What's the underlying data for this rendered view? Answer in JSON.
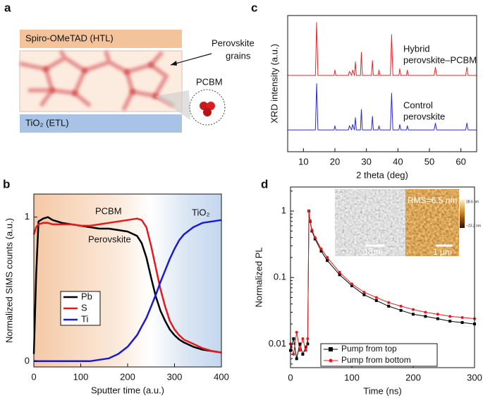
{
  "panels": [
    "a",
    "b",
    "c",
    "d"
  ],
  "diagram": {
    "htl": "Spiro-OMeTAD (HTL)",
    "etl": "TiO₂ (ETL)",
    "grains": [
      "Perovskite",
      "grains"
    ],
    "pcbm": "PCBM"
  },
  "chart_data": [
    {
      "type": "line",
      "xlabel": "2 theta (deg)",
      "ylabel": "XRD intensity (a.u.)",
      "x": [
        5,
        13.8,
        14.2,
        14.6,
        19.7,
        20.0,
        20.3,
        24.3,
        24.6,
        25.3,
        25.6,
        26.2,
        26.5,
        26.8,
        28.1,
        28.4,
        28.7,
        31.6,
        31.9,
        32.2,
        33.7,
        34.0,
        34.3,
        37.6,
        38.0,
        38.4,
        40.3,
        40.6,
        40.9,
        42.7,
        43.0,
        43.3,
        51.5,
        51.9,
        52.3,
        61.5,
        61.9,
        62.3,
        65
      ],
      "series": [
        {
          "color": "#e8262a",
          "values": [
            0.56,
            0.56,
            0.95,
            0.56,
            0.56,
            0.6,
            0.56,
            0.56,
            0.59,
            0.56,
            0.6,
            0.56,
            0.66,
            0.56,
            0.56,
            0.73,
            0.56,
            0.56,
            0.67,
            0.56,
            0.56,
            0.6,
            0.56,
            0.56,
            0.86,
            0.56,
            0.56,
            0.61,
            0.56,
            0.56,
            0.6,
            0.56,
            0.56,
            0.62,
            0.56,
            0.56,
            0.62,
            0.56,
            0.56
          ]
        },
        {
          "color": "#2b2bd0",
          "values": [
            0.16,
            0.16,
            0.5,
            0.16,
            0.16,
            0.19,
            0.16,
            0.16,
            0.19,
            0.16,
            0.2,
            0.16,
            0.25,
            0.16,
            0.16,
            0.31,
            0.16,
            0.16,
            0.26,
            0.16,
            0.16,
            0.19,
            0.16,
            0.16,
            0.43,
            0.16,
            0.16,
            0.2,
            0.16,
            0.16,
            0.19,
            0.16,
            0.16,
            0.21,
            0.16,
            0.16,
            0.21,
            0.16,
            0.16
          ]
        }
      ],
      "annotations": [
        [
          "Hybrid",
          "perovskite–PCBM"
        ],
        [
          "Control",
          "perovskite"
        ]
      ],
      "xlim": [
        5,
        65
      ],
      "xticks": [
        10,
        20,
        30,
        40,
        50,
        60
      ],
      "ylim": [
        0,
        1
      ]
    },
    {
      "type": "line",
      "xlabel": "Sputter time (a.u.)",
      "ylabel": "Normalized SIMS counts (a.u.)",
      "x": [
        0,
        5,
        10,
        20,
        30,
        40,
        60,
        80,
        100,
        120,
        140,
        160,
        180,
        200,
        220,
        230,
        240,
        250,
        260,
        270,
        280,
        290,
        300,
        310,
        320,
        340,
        360,
        380,
        400
      ],
      "series": [
        {
          "name": "Pb",
          "color": "#000000",
          "values": [
            0.05,
            0.6,
            0.97,
            0.99,
            1.0,
            0.98,
            0.96,
            0.95,
            0.94,
            0.93,
            0.92,
            0.92,
            0.91,
            0.9,
            0.87,
            0.82,
            0.72,
            0.58,
            0.45,
            0.35,
            0.28,
            0.22,
            0.18,
            0.15,
            0.13,
            0.1,
            0.08,
            0.07,
            0.06
          ]
        },
        {
          "name": "S",
          "color": "#e8191d",
          "values": [
            0.88,
            0.93,
            0.95,
            0.96,
            0.96,
            0.95,
            0.95,
            0.95,
            0.94,
            0.94,
            0.95,
            0.96,
            0.97,
            0.98,
            0.99,
            0.98,
            0.93,
            0.8,
            0.65,
            0.5,
            0.38,
            0.28,
            0.22,
            0.18,
            0.15,
            0.12,
            0.09,
            0.07,
            0.06
          ]
        },
        {
          "name": "Ti",
          "color": "#1a1ad6",
          "values": [
            0,
            0,
            0,
            0,
            0,
            0,
            0,
            0,
            0,
            0,
            0.01,
            0.02,
            0.05,
            0.1,
            0.18,
            0.24,
            0.3,
            0.38,
            0.46,
            0.55,
            0.63,
            0.71,
            0.78,
            0.84,
            0.88,
            0.93,
            0.96,
            0.97,
            0.98
          ]
        }
      ],
      "annotations": [
        [
          "PCBM"
        ],
        [
          "Perovskite"
        ],
        [
          "TiO₂"
        ]
      ],
      "xlim": [
        0,
        400
      ],
      "xticks": [
        0,
        100,
        200,
        300,
        400
      ],
      "ylim": [
        -0.04,
        1.16
      ],
      "yticks": [
        0,
        1
      ]
    },
    {
      "type": "line",
      "xlabel": "Time (ns)",
      "ylabel": "Normalized PL",
      "ylog": true,
      "x": [
        0,
        5,
        10,
        15,
        20,
        25,
        28,
        30,
        32,
        35,
        40,
        50,
        60,
        80,
        100,
        120,
        140,
        160,
        180,
        200,
        220,
        240,
        260,
        280,
        300
      ],
      "series": [
        {
          "name": "Pump from top",
          "color": "#000000",
          "marker": "square",
          "values": [
            0.008,
            0.012,
            0.006,
            0.01,
            0.007,
            0.009,
            0.01,
            1.0,
            0.7,
            0.5,
            0.38,
            0.25,
            0.18,
            0.11,
            0.075,
            0.055,
            0.045,
            0.037,
            0.032,
            0.028,
            0.026,
            0.024,
            0.022,
            0.021,
            0.02
          ]
        },
        {
          "name": "Pump from bottom",
          "color": "#e8191d",
          "marker": "circle",
          "values": [
            0.01,
            0.007,
            0.015,
            0.008,
            0.012,
            0.008,
            0.012,
            1.0,
            0.72,
            0.52,
            0.4,
            0.27,
            0.2,
            0.12,
            0.08,
            0.06,
            0.05,
            0.042,
            0.037,
            0.033,
            0.03,
            0.028,
            0.026,
            0.025,
            0.024
          ]
        }
      ],
      "insets": {
        "rms": "RMS=6.5 nm",
        "scale": [
          "1 μm",
          "1 μm"
        ],
        "colorbar": [
          "28.6 nm",
          "−23.2 nm"
        ]
      },
      "xlim": [
        0,
        300
      ],
      "xticks": [
        0,
        100,
        200,
        300
      ],
      "ylim": [
        0.0044,
        2.3
      ],
      "yticks": [
        0.01,
        0.1,
        1
      ]
    }
  ]
}
